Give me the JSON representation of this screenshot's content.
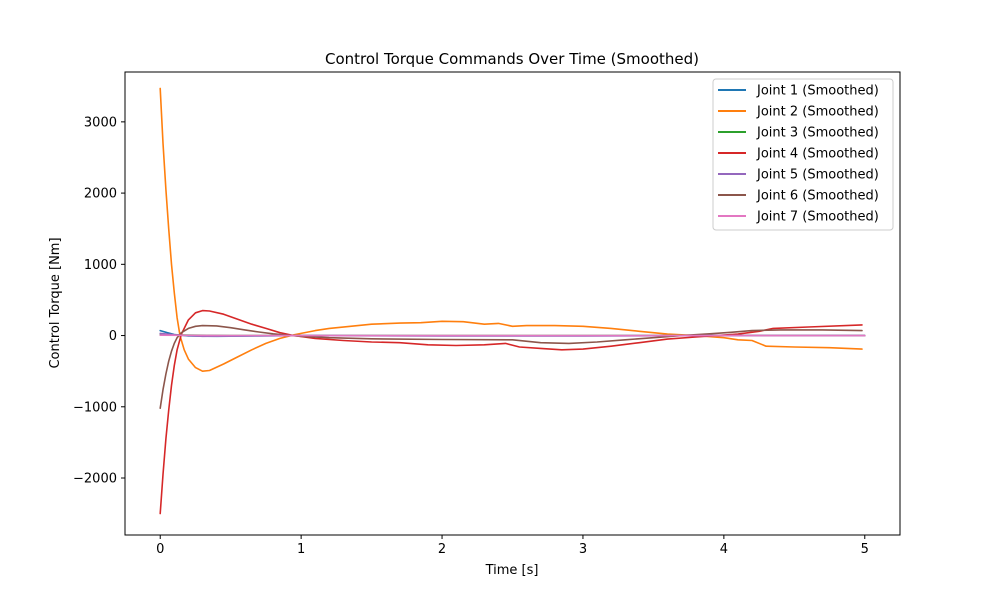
{
  "chart_data": {
    "type": "line",
    "title": "Control Torque Commands Over Time (Smoothed)",
    "xlabel": "Time [s]",
    "ylabel": "Control Torque [Nm]",
    "xlim": [
      -0.25,
      5.25
    ],
    "ylim": [
      -2800,
      3700
    ],
    "xticks": [
      {
        "value": 0,
        "label": "0"
      },
      {
        "value": 1,
        "label": "1"
      },
      {
        "value": 2,
        "label": "2"
      },
      {
        "value": 3,
        "label": "3"
      },
      {
        "value": 4,
        "label": "4"
      },
      {
        "value": 5,
        "label": "5"
      }
    ],
    "yticks": [
      {
        "value": -2000,
        "label": "−2000"
      },
      {
        "value": -1000,
        "label": "−1000"
      },
      {
        "value": 0,
        "label": "0"
      },
      {
        "value": 1000,
        "label": "1000"
      },
      {
        "value": 2000,
        "label": "2000"
      },
      {
        "value": 3000,
        "label": "3000"
      }
    ],
    "grid": false,
    "legend_position": "top-right",
    "series": [
      {
        "name": "Joint 1 (Smoothed)",
        "color": "#1f77b4",
        "points": [
          [
            0,
            70
          ],
          [
            0.05,
            40
          ],
          [
            0.1,
            15
          ],
          [
            0.2,
            -5
          ],
          [
            0.4,
            -10
          ],
          [
            0.7,
            -5
          ],
          [
            1.0,
            0
          ],
          [
            2.0,
            -3
          ],
          [
            3.0,
            -3
          ],
          [
            4.0,
            0
          ],
          [
            5.0,
            0
          ]
        ]
      },
      {
        "name": "Joint 2 (Smoothed)",
        "color": "#ff7f0e",
        "points": [
          [
            0,
            3470
          ],
          [
            0.02,
            2700
          ],
          [
            0.04,
            2050
          ],
          [
            0.06,
            1500
          ],
          [
            0.08,
            1000
          ],
          [
            0.1,
            600
          ],
          [
            0.12,
            250
          ],
          [
            0.14,
            0
          ],
          [
            0.17,
            -200
          ],
          [
            0.2,
            -330
          ],
          [
            0.25,
            -450
          ],
          [
            0.3,
            -500
          ],
          [
            0.35,
            -490
          ],
          [
            0.45,
            -400
          ],
          [
            0.55,
            -300
          ],
          [
            0.65,
            -200
          ],
          [
            0.75,
            -110
          ],
          [
            0.85,
            -40
          ],
          [
            0.95,
            10
          ],
          [
            1.0,
            30
          ],
          [
            1.1,
            70
          ],
          [
            1.2,
            100
          ],
          [
            1.35,
            130
          ],
          [
            1.5,
            160
          ],
          [
            1.7,
            175
          ],
          [
            1.85,
            180
          ],
          [
            2.0,
            200
          ],
          [
            2.15,
            195
          ],
          [
            2.3,
            160
          ],
          [
            2.4,
            170
          ],
          [
            2.5,
            130
          ],
          [
            2.6,
            140
          ],
          [
            2.8,
            140
          ],
          [
            3.0,
            130
          ],
          [
            3.2,
            100
          ],
          [
            3.4,
            60
          ],
          [
            3.6,
            20
          ],
          [
            3.8,
            0
          ],
          [
            4.0,
            -30
          ],
          [
            4.1,
            -60
          ],
          [
            4.2,
            -70
          ],
          [
            4.3,
            -150
          ],
          [
            4.5,
            -160
          ],
          [
            4.75,
            -170
          ],
          [
            4.98,
            -190
          ]
        ]
      },
      {
        "name": "Joint 3 (Smoothed)",
        "color": "#2ca02c",
        "points": [
          [
            0,
            10
          ],
          [
            0.5,
            0
          ],
          [
            1.0,
            0
          ],
          [
            2.0,
            0
          ],
          [
            3.0,
            0
          ],
          [
            4.0,
            0
          ],
          [
            5.0,
            0
          ]
        ]
      },
      {
        "name": "Joint 4 (Smoothed)",
        "color": "#d62728",
        "points": [
          [
            0,
            -2500
          ],
          [
            0.02,
            -1950
          ],
          [
            0.04,
            -1450
          ],
          [
            0.06,
            -1050
          ],
          [
            0.08,
            -700
          ],
          [
            0.1,
            -420
          ],
          [
            0.12,
            -200
          ],
          [
            0.15,
            20
          ],
          [
            0.2,
            220
          ],
          [
            0.25,
            320
          ],
          [
            0.3,
            350
          ],
          [
            0.35,
            345
          ],
          [
            0.45,
            300
          ],
          [
            0.55,
            230
          ],
          [
            0.65,
            160
          ],
          [
            0.75,
            100
          ],
          [
            0.85,
            40
          ],
          [
            0.95,
            0
          ],
          [
            1.1,
            -40
          ],
          [
            1.3,
            -70
          ],
          [
            1.5,
            -90
          ],
          [
            1.7,
            -100
          ],
          [
            1.9,
            -130
          ],
          [
            2.1,
            -140
          ],
          [
            2.3,
            -130
          ],
          [
            2.45,
            -110
          ],
          [
            2.55,
            -160
          ],
          [
            2.7,
            -180
          ],
          [
            2.85,
            -200
          ],
          [
            3.0,
            -190
          ],
          [
            3.2,
            -150
          ],
          [
            3.4,
            -100
          ],
          [
            3.6,
            -50
          ],
          [
            3.8,
            -20
          ],
          [
            3.95,
            0
          ],
          [
            4.1,
            20
          ],
          [
            4.25,
            60
          ],
          [
            4.35,
            100
          ],
          [
            4.6,
            120
          ],
          [
            4.98,
            150
          ]
        ]
      },
      {
        "name": "Joint 5 (Smoothed)",
        "color": "#9467bd",
        "points": [
          [
            0,
            30
          ],
          [
            0.1,
            10
          ],
          [
            0.3,
            -10
          ],
          [
            0.6,
            -5
          ],
          [
            1.0,
            0
          ],
          [
            2.0,
            -5
          ],
          [
            3.0,
            -5
          ],
          [
            4.0,
            0
          ],
          [
            5.0,
            0
          ]
        ]
      },
      {
        "name": "Joint 6 (Smoothed)",
        "color": "#8c564b",
        "points": [
          [
            0,
            -1020
          ],
          [
            0.02,
            -760
          ],
          [
            0.04,
            -540
          ],
          [
            0.06,
            -360
          ],
          [
            0.08,
            -220
          ],
          [
            0.1,
            -110
          ],
          [
            0.12,
            -30
          ],
          [
            0.15,
            40
          ],
          [
            0.2,
            100
          ],
          [
            0.25,
            130
          ],
          [
            0.3,
            140
          ],
          [
            0.4,
            135
          ],
          [
            0.5,
            110
          ],
          [
            0.6,
            80
          ],
          [
            0.7,
            50
          ],
          [
            0.8,
            25
          ],
          [
            0.9,
            5
          ],
          [
            1.0,
            -10
          ],
          [
            1.2,
            -30
          ],
          [
            1.5,
            -45
          ],
          [
            2.0,
            -55
          ],
          [
            2.5,
            -60
          ],
          [
            2.7,
            -100
          ],
          [
            2.9,
            -110
          ],
          [
            3.1,
            -90
          ],
          [
            3.3,
            -60
          ],
          [
            3.5,
            -30
          ],
          [
            3.7,
            0
          ],
          [
            3.9,
            25
          ],
          [
            4.05,
            45
          ],
          [
            4.2,
            70
          ],
          [
            4.4,
            80
          ],
          [
            4.7,
            80
          ],
          [
            4.98,
            70
          ]
        ]
      },
      {
        "name": "Joint 7 (Smoothed)",
        "color": "#e377c2",
        "points": [
          [
            0,
            5
          ],
          [
            0.5,
            0
          ],
          [
            1.0,
            0
          ],
          [
            2.0,
            0
          ],
          [
            3.0,
            0
          ],
          [
            4.0,
            0
          ],
          [
            5.0,
            0
          ]
        ]
      }
    ]
  }
}
